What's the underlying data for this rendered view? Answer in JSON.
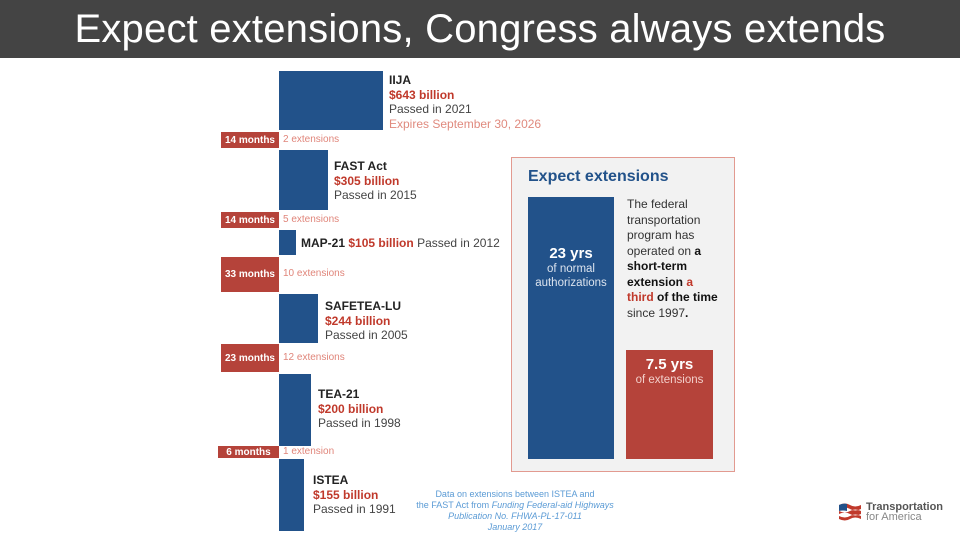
{
  "title": "Expect extensions, Congress always extends",
  "chart_data": {
    "type": "bar",
    "orientation": "stacked timeline",
    "unit": "billion",
    "laws": [
      {
        "name": "IIJA",
        "amount": "$643 billion",
        "value": 643,
        "passed": "Passed in 2021",
        "expires": "Expires September 30, 2026"
      },
      {
        "name": "FAST Act",
        "amount": "$305 billion",
        "value": 305,
        "passed": "Passed in 2015"
      },
      {
        "name": "MAP-21",
        "amount": "$105 billion",
        "value": 105,
        "passed": "Passed in 2012"
      },
      {
        "name": "SAFETEA-LU",
        "amount": "$244 billion",
        "value": 244,
        "passed": "Passed in 2005"
      },
      {
        "name": "TEA-21",
        "amount": "$200 billion",
        "value": 200,
        "passed": "Passed in 1998"
      },
      {
        "name": "ISTEA",
        "amount": "$155 billion",
        "value": 155,
        "passed": "Passed in 1991"
      }
    ],
    "extensions": [
      {
        "duration": "14 months",
        "count": "2 extensions"
      },
      {
        "duration": "14 months",
        "count": "5 extensions"
      },
      {
        "duration": "33 months",
        "count": "10 extensions"
      },
      {
        "duration": "23 months",
        "count": "12 extensions"
      },
      {
        "duration": "6 months",
        "count": "1 extension"
      }
    ],
    "colors": {
      "authorization": "#22528a",
      "extension": "#b5433a"
    }
  },
  "callout": {
    "title": "Expect extensions",
    "normal_value": "23 yrs",
    "normal_label": "of normal authorizations",
    "ext_value": "7.5 yrs",
    "ext_label": "of extensions",
    "desc_1": "The federal transportation program has operated on ",
    "desc_2": "a short-term extension",
    "desc_3": " a third",
    "desc_4": " of the time",
    "desc_5": " since 1997",
    "desc_6": "."
  },
  "footnote": {
    "line1": "Data on extensions between ISTEA and",
    "line2a": "the FAST Act from ",
    "line2b": "Funding Federal-aid Highways",
    "line3": "Publication No. FHWA-PL-17-011",
    "line4": "January 2017"
  },
  "logo": {
    "line1": "Transportation",
    "line2": "for America"
  }
}
